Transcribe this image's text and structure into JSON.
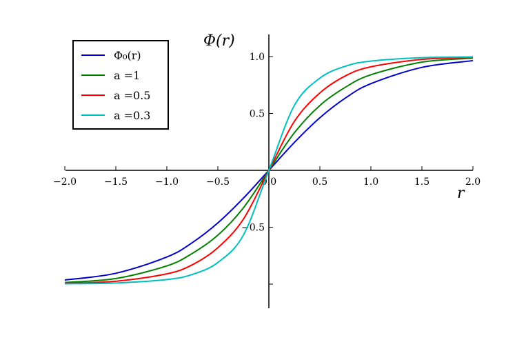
{
  "chart_data": {
    "type": "line",
    "ylabel": "Φ(r)",
    "xlabel": "r",
    "xlim": [
      -2.0,
      2.0
    ],
    "ylim": [
      -1.2,
      1.2
    ],
    "x_ticks": [
      -2.0,
      -1.5,
      -1.0,
      -0.5,
      0.0,
      0.5,
      1.0,
      1.5,
      2.0
    ],
    "x_tick_labels": [
      "−2.0",
      "−1.5",
      "−1.0",
      "−0.5",
      "0.0",
      "0.5",
      "1.0",
      "1.5",
      "2.0"
    ],
    "y_ticks": [
      -1.0,
      -0.5,
      0.0,
      0.5,
      1.0
    ],
    "y_tick_labels": [
      "",
      "−0.5",
      "",
      "0.5",
      "1.0"
    ],
    "grid": false,
    "legend_position": "top-left",
    "x": [
      -2.0,
      -1.5,
      -1.0,
      -0.75,
      -0.5,
      -0.25,
      0.0,
      0.25,
      0.5,
      0.75,
      1.0,
      1.5,
      2.0
    ],
    "series": [
      {
        "name": "Φ₀(r)",
        "color": "#0000cc",
        "values": [
          -0.964,
          -0.905,
          -0.762,
          -0.635,
          -0.462,
          -0.245,
          0.0,
          0.245,
          0.462,
          0.635,
          0.762,
          0.905,
          0.964
        ]
      },
      {
        "name": "a =1",
        "color": "#008000",
        "values": [
          -0.986,
          -0.951,
          -0.84,
          -0.73,
          -0.57,
          -0.33,
          0.0,
          0.33,
          0.57,
          0.73,
          0.84,
          0.951,
          0.986
        ]
      },
      {
        "name": "a =0.5",
        "color": "#ff0000",
        "values": [
          -0.993,
          -0.975,
          -0.91,
          -0.83,
          -0.68,
          -0.43,
          0.0,
          0.43,
          0.68,
          0.83,
          0.91,
          0.975,
          0.993
        ]
      },
      {
        "name": "a =0.3",
        "color": "#00bfbf",
        "values": [
          -0.997,
          -0.99,
          -0.96,
          -0.915,
          -0.81,
          -0.57,
          0.0,
          0.57,
          0.81,
          0.915,
          0.96,
          0.99,
          0.997
        ]
      }
    ]
  }
}
